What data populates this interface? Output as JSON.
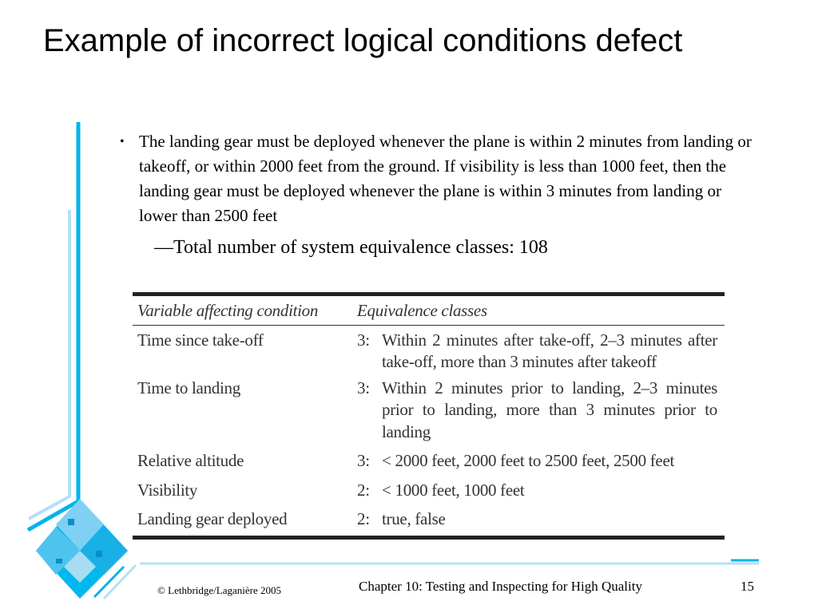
{
  "slide": {
    "title": "Example of incorrect logical conditions defect",
    "bullet": "The landing gear must be deployed whenever the plane is within 2 minutes from landing or takeoff, or within 2000 feet from the ground. If visibility is less than 1000 feet, then the landing gear must be deployed whenever the plane is within 3 minutes from landing or lower than 2500 feet",
    "bullet_marker": "•",
    "sub_point": "—Total number of system equivalence classes: 108"
  },
  "table": {
    "headers": [
      "Variable affecting condition",
      "Equivalence classes"
    ],
    "rows": [
      {
        "variable": "Time since take-off",
        "count": "3:",
        "classes": "Within 2 minutes after take-off, 2–3 minutes after take-off, more than 3 minutes after takeoff"
      },
      {
        "variable": "Time to landing",
        "count": "3:",
        "classes": "Within 2 minutes prior to landing, 2–3 minutes prior to landing, more than 3 minutes prior to landing"
      },
      {
        "variable": "Relative altitude",
        "count": "3:",
        "classes": "< 2000 feet, 2000 feet to 2500 feet, 2500 feet"
      },
      {
        "variable": "Visibility",
        "count": "2:",
        "classes": "< 1000 feet, 1000 feet"
      },
      {
        "variable": "Landing gear deployed",
        "count": "2:",
        "classes": "true, false"
      }
    ]
  },
  "footer": {
    "copyright": "© Lethbridge/Laganière 2005",
    "chapter": "Chapter 10: Testing and Inspecting for High Quality",
    "page_number": "15"
  },
  "colors": {
    "accent": "#00b4ec",
    "accent_light": "#b3e0f5"
  }
}
